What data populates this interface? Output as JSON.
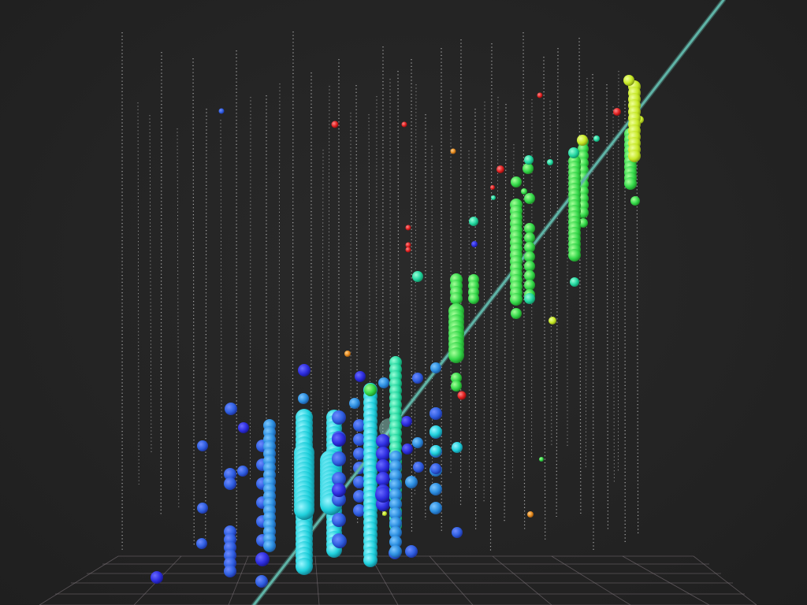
{
  "scene": {
    "background_color": "#232323",
    "string_color": "#d8d8d8",
    "grid_color": "#8a7f86",
    "track_color": "#5fb3a6",
    "elements": {
      "detector_strings": "detector-strings",
      "floor_grid": "floor-grid",
      "muon_track": "muon-track",
      "photon_hits": "photon-hits"
    },
    "hit_color_scale": [
      "#3a2fd8",
      "#2f7bdc",
      "#22c9d6",
      "#26d98f",
      "#3fdc3c",
      "#c8e81f",
      "#e98a1f",
      "#e02424"
    ]
  }
}
